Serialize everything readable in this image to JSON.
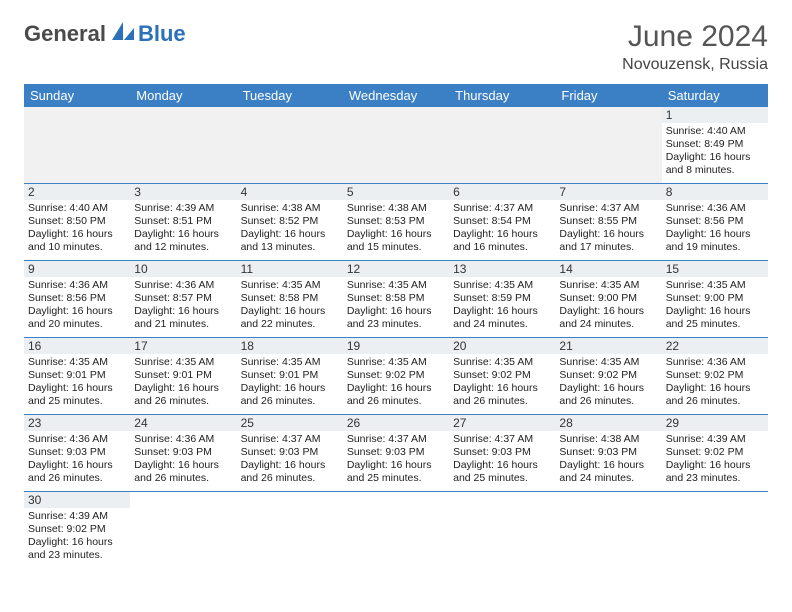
{
  "logo": {
    "text1": "General",
    "text2": "Blue"
  },
  "title": "June 2024",
  "location": "Novouzensk, Russia",
  "colors": {
    "header_bg": "#3b7fc4",
    "header_text": "#ffffff",
    "daynum_bg": "#eceff1",
    "row_border": "#3b7fc4",
    "logo_gray": "#4a4a4a",
    "logo_blue": "#2b70b8"
  },
  "days_of_week": [
    "Sunday",
    "Monday",
    "Tuesday",
    "Wednesday",
    "Thursday",
    "Friday",
    "Saturday"
  ],
  "blanks_before": 6,
  "cells": [
    {
      "n": "1",
      "sr": "4:40 AM",
      "ss": "8:49 PM",
      "dl": "16 hours and 8 minutes."
    },
    {
      "n": "2",
      "sr": "4:40 AM",
      "ss": "8:50 PM",
      "dl": "16 hours and 10 minutes."
    },
    {
      "n": "3",
      "sr": "4:39 AM",
      "ss": "8:51 PM",
      "dl": "16 hours and 12 minutes."
    },
    {
      "n": "4",
      "sr": "4:38 AM",
      "ss": "8:52 PM",
      "dl": "16 hours and 13 minutes."
    },
    {
      "n": "5",
      "sr": "4:38 AM",
      "ss": "8:53 PM",
      "dl": "16 hours and 15 minutes."
    },
    {
      "n": "6",
      "sr": "4:37 AM",
      "ss": "8:54 PM",
      "dl": "16 hours and 16 minutes."
    },
    {
      "n": "7",
      "sr": "4:37 AM",
      "ss": "8:55 PM",
      "dl": "16 hours and 17 minutes."
    },
    {
      "n": "8",
      "sr": "4:36 AM",
      "ss": "8:56 PM",
      "dl": "16 hours and 19 minutes."
    },
    {
      "n": "9",
      "sr": "4:36 AM",
      "ss": "8:56 PM",
      "dl": "16 hours and 20 minutes."
    },
    {
      "n": "10",
      "sr": "4:36 AM",
      "ss": "8:57 PM",
      "dl": "16 hours and 21 minutes."
    },
    {
      "n": "11",
      "sr": "4:35 AM",
      "ss": "8:58 PM",
      "dl": "16 hours and 22 minutes."
    },
    {
      "n": "12",
      "sr": "4:35 AM",
      "ss": "8:58 PM",
      "dl": "16 hours and 23 minutes."
    },
    {
      "n": "13",
      "sr": "4:35 AM",
      "ss": "8:59 PM",
      "dl": "16 hours and 24 minutes."
    },
    {
      "n": "14",
      "sr": "4:35 AM",
      "ss": "9:00 PM",
      "dl": "16 hours and 24 minutes."
    },
    {
      "n": "15",
      "sr": "4:35 AM",
      "ss": "9:00 PM",
      "dl": "16 hours and 25 minutes."
    },
    {
      "n": "16",
      "sr": "4:35 AM",
      "ss": "9:01 PM",
      "dl": "16 hours and 25 minutes."
    },
    {
      "n": "17",
      "sr": "4:35 AM",
      "ss": "9:01 PM",
      "dl": "16 hours and 26 minutes."
    },
    {
      "n": "18",
      "sr": "4:35 AM",
      "ss": "9:01 PM",
      "dl": "16 hours and 26 minutes."
    },
    {
      "n": "19",
      "sr": "4:35 AM",
      "ss": "9:02 PM",
      "dl": "16 hours and 26 minutes."
    },
    {
      "n": "20",
      "sr": "4:35 AM",
      "ss": "9:02 PM",
      "dl": "16 hours and 26 minutes."
    },
    {
      "n": "21",
      "sr": "4:35 AM",
      "ss": "9:02 PM",
      "dl": "16 hours and 26 minutes."
    },
    {
      "n": "22",
      "sr": "4:36 AM",
      "ss": "9:02 PM",
      "dl": "16 hours and 26 minutes."
    },
    {
      "n": "23",
      "sr": "4:36 AM",
      "ss": "9:03 PM",
      "dl": "16 hours and 26 minutes."
    },
    {
      "n": "24",
      "sr": "4:36 AM",
      "ss": "9:03 PM",
      "dl": "16 hours and 26 minutes."
    },
    {
      "n": "25",
      "sr": "4:37 AM",
      "ss": "9:03 PM",
      "dl": "16 hours and 26 minutes."
    },
    {
      "n": "26",
      "sr": "4:37 AM",
      "ss": "9:03 PM",
      "dl": "16 hours and 25 minutes."
    },
    {
      "n": "27",
      "sr": "4:37 AM",
      "ss": "9:03 PM",
      "dl": "16 hours and 25 minutes."
    },
    {
      "n": "28",
      "sr": "4:38 AM",
      "ss": "9:03 PM",
      "dl": "16 hours and 24 minutes."
    },
    {
      "n": "29",
      "sr": "4:39 AM",
      "ss": "9:02 PM",
      "dl": "16 hours and 23 minutes."
    },
    {
      "n": "30",
      "sr": "4:39 AM",
      "ss": "9:02 PM",
      "dl": "16 hours and 23 minutes."
    }
  ],
  "labels": {
    "sunrise": "Sunrise:",
    "sunset": "Sunset:",
    "daylight": "Daylight:"
  }
}
